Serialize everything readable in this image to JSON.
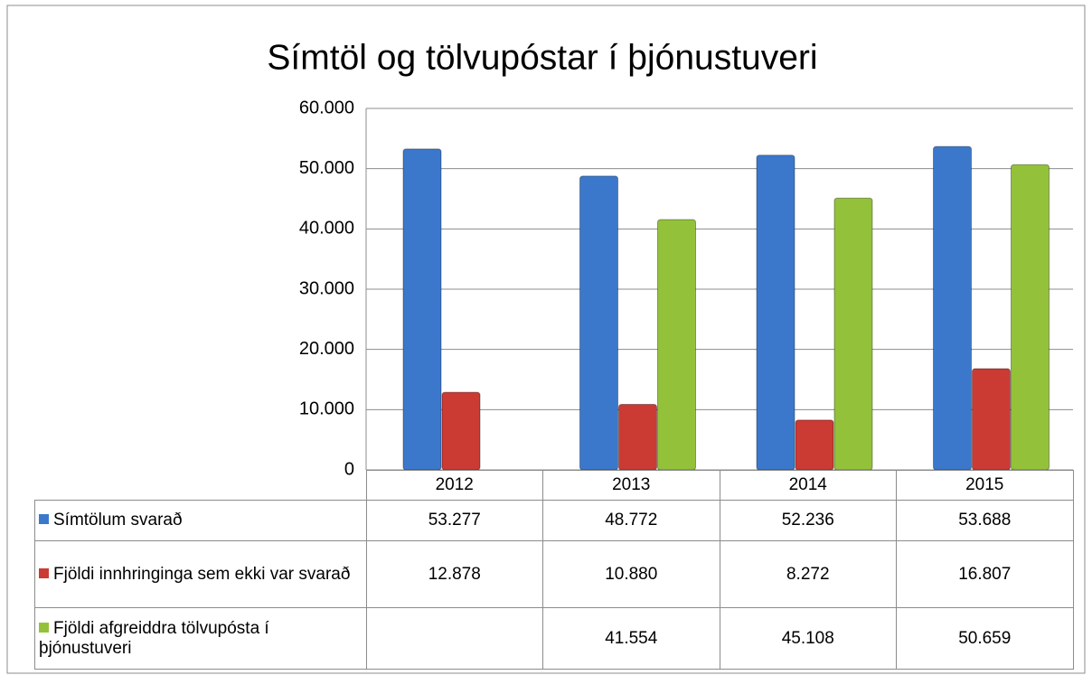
{
  "chart_data": {
    "type": "bar",
    "title": "Símtöl og tölvupóstar í þjónustuveri",
    "categories": [
      "2012",
      "2013",
      "2014",
      "2015"
    ],
    "series": [
      {
        "name": "Símtölum svarað",
        "color": "#3b78cc",
        "values": [
          53277,
          48772,
          52236,
          53688
        ],
        "value_labels": [
          "53.277",
          "48.772",
          "52.236",
          "53.688"
        ]
      },
      {
        "name": "Fjöldi innhringinga sem ekki var svarað",
        "color": "#cc3a34",
        "values": [
          12878,
          10880,
          8272,
          16807
        ],
        "value_labels": [
          "12.878",
          "10.880",
          "8.272",
          "16.807"
        ]
      },
      {
        "name": "Fjöldi afgreiddra tölvupósta í þjónustuveri",
        "color": "#93c23a",
        "values": [
          null,
          41554,
          45108,
          50659
        ],
        "value_labels": [
          null,
          "41.554",
          "45.108",
          "50.659"
        ]
      }
    ],
    "ylim": [
      0,
      60000
    ],
    "yticks": [
      0,
      {
        "value": 10000,
        "label": "10.000"
      },
      {
        "value": 20000,
        "label": "20.000"
      },
      {
        "value": 30000,
        "label": "30.000"
      },
      {
        "value": 40000,
        "label": "40.000"
      },
      {
        "value": 50000,
        "label": "50.000"
      },
      {
        "value": 60000,
        "label": "60.000"
      }
    ],
    "grid": true
  }
}
